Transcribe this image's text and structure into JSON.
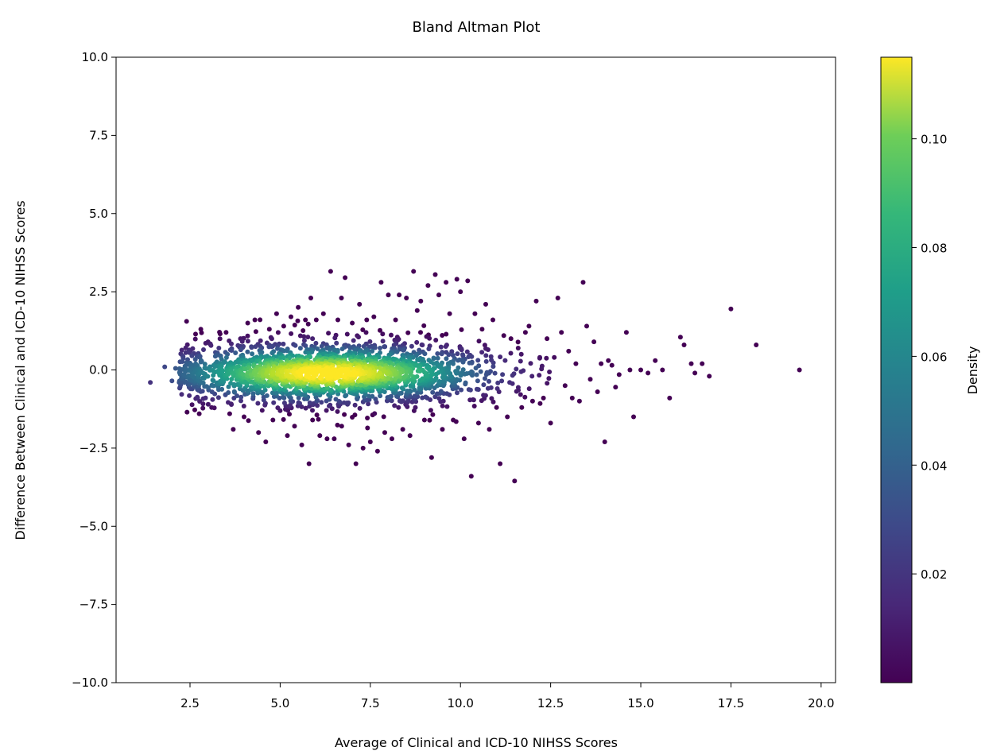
{
  "chart_data": {
    "type": "scatter",
    "title": "Bland Altman Plot",
    "xlabel": "Average of Clinical and ICD-10 NIHSS Scores",
    "ylabel": "Difference Between Clinical and ICD-10 NIHSS Scores",
    "xlim": [
      0.45,
      20.4
    ],
    "ylim": [
      -10.0,
      10.0
    ],
    "x_ticks": [
      "2.5",
      "5.0",
      "7.5",
      "10.0",
      "12.5",
      "15.0",
      "17.5",
      "20.0"
    ],
    "x_tick_values": [
      2.5,
      5.0,
      7.5,
      10.0,
      12.5,
      15.0,
      17.5,
      20.0
    ],
    "y_ticks": [
      "10.0",
      "7.5",
      "5.0",
      "2.5",
      "0.0",
      "−2.5",
      "−5.0",
      "−7.5",
      "−10.0"
    ],
    "y_tick_values": [
      10.0,
      7.5,
      5.0,
      2.5,
      0.0,
      -2.5,
      -5.0,
      -7.5,
      -10.0
    ],
    "grid": false,
    "colormap": "viridis",
    "colors": {
      "low": "#440154",
      "high": "#fde725"
    },
    "colorbar": {
      "label": "Density",
      "range": [
        0.0,
        0.115
      ],
      "ticks": [
        "0.02",
        "0.04",
        "0.06",
        "0.08",
        "0.10"
      ],
      "tick_values": [
        0.02,
        0.04,
        0.06,
        0.08,
        0.1
      ]
    },
    "density_core": {
      "center": [
        6.3,
        -0.1
      ],
      "spread": [
        2.6,
        0.5
      ],
      "count": 2200
    },
    "points": [
      [
        1.4,
        -0.4
      ],
      [
        1.8,
        0.1
      ],
      [
        2.0,
        -0.35
      ],
      [
        2.1,
        0.05
      ],
      [
        2.2,
        -0.4
      ],
      [
        2.5,
        0.6
      ],
      [
        2.7,
        -0.6
      ],
      [
        2.8,
        1.3
      ],
      [
        3.0,
        0.9
      ],
      [
        3.1,
        -1.2
      ],
      [
        3.3,
        0.7
      ],
      [
        3.5,
        1.2
      ],
      [
        3.6,
        -1.4
      ],
      [
        3.7,
        -1.9
      ],
      [
        3.9,
        1.0
      ],
      [
        4.0,
        -1.5
      ],
      [
        4.1,
        1.5
      ],
      [
        4.3,
        1.6
      ],
      [
        4.4,
        -2.0
      ],
      [
        4.6,
        -2.3
      ],
      [
        4.7,
        1.3
      ],
      [
        4.8,
        -1.6
      ],
      [
        4.9,
        1.8
      ],
      [
        5.0,
        -1.3
      ],
      [
        5.1,
        1.4
      ],
      [
        5.2,
        -2.1
      ],
      [
        5.3,
        1.7
      ],
      [
        5.4,
        -1.8
      ],
      [
        5.5,
        2.0
      ],
      [
        5.6,
        -2.4
      ],
      [
        5.7,
        1.6
      ],
      [
        5.8,
        -3.0
      ],
      [
        5.85,
        2.3
      ],
      [
        5.9,
        -1.6
      ],
      [
        6.0,
        1.6
      ],
      [
        6.1,
        -2.1
      ],
      [
        6.2,
        1.8
      ],
      [
        6.3,
        -2.2
      ],
      [
        6.4,
        3.15
      ],
      [
        6.5,
        -2.2
      ],
      [
        6.6,
        1.6
      ],
      [
        6.7,
        2.3
      ],
      [
        6.8,
        2.95
      ],
      [
        6.9,
        -2.4
      ],
      [
        7.0,
        1.5
      ],
      [
        7.1,
        -3.0
      ],
      [
        7.2,
        2.1
      ],
      [
        7.3,
        -2.5
      ],
      [
        7.4,
        1.6
      ],
      [
        7.5,
        -2.3
      ],
      [
        7.6,
        1.7
      ],
      [
        7.7,
        -2.6
      ],
      [
        7.8,
        2.8
      ],
      [
        7.9,
        -2.0
      ],
      [
        8.0,
        2.4
      ],
      [
        8.1,
        -2.2
      ],
      [
        8.2,
        1.6
      ],
      [
        8.3,
        2.4
      ],
      [
        8.4,
        -1.9
      ],
      [
        8.5,
        2.3
      ],
      [
        8.6,
        -2.1
      ],
      [
        8.7,
        3.15
      ],
      [
        8.8,
        1.9
      ],
      [
        8.9,
        2.2
      ],
      [
        9.0,
        -1.6
      ],
      [
        9.1,
        2.7
      ],
      [
        9.2,
        -2.8
      ],
      [
        9.3,
        3.05
      ],
      [
        9.4,
        2.4
      ],
      [
        9.5,
        -1.9
      ],
      [
        9.6,
        2.8
      ],
      [
        9.7,
        1.8
      ],
      [
        9.8,
        -1.6
      ],
      [
        9.9,
        2.9
      ],
      [
        10.0,
        2.5
      ],
      [
        10.1,
        -2.2
      ],
      [
        10.2,
        2.85
      ],
      [
        10.3,
        -3.4
      ],
      [
        10.4,
        1.8
      ],
      [
        10.5,
        -1.7
      ],
      [
        10.6,
        1.3
      ],
      [
        10.7,
        2.1
      ],
      [
        10.8,
        -1.9
      ],
      [
        10.9,
        1.6
      ],
      [
        11.0,
        -1.2
      ],
      [
        11.1,
        -3.0
      ],
      [
        11.2,
        1.1
      ],
      [
        11.3,
        -1.5
      ],
      [
        11.4,
        1.0
      ],
      [
        11.5,
        -3.55
      ],
      [
        11.6,
        0.7
      ],
      [
        11.7,
        -1.2
      ],
      [
        11.8,
        1.2
      ],
      [
        11.9,
        1.4
      ],
      [
        12.0,
        -1.0
      ],
      [
        12.1,
        2.2
      ],
      [
        12.2,
        0.4
      ],
      [
        12.3,
        -0.9
      ],
      [
        12.4,
        1.0
      ],
      [
        12.5,
        -1.7
      ],
      [
        12.6,
        0.4
      ],
      [
        12.7,
        2.3
      ],
      [
        12.8,
        1.2
      ],
      [
        12.9,
        -0.5
      ],
      [
        13.0,
        0.6
      ],
      [
        13.1,
        -0.9
      ],
      [
        13.2,
        0.2
      ],
      [
        13.3,
        -1.0
      ],
      [
        13.4,
        2.8
      ],
      [
        13.5,
        1.4
      ],
      [
        13.6,
        -0.3
      ],
      [
        13.7,
        0.9
      ],
      [
        13.8,
        -0.7
      ],
      [
        13.9,
        0.2
      ],
      [
        14.0,
        -2.3
      ],
      [
        14.1,
        0.3
      ],
      [
        14.2,
        0.15
      ],
      [
        14.3,
        -0.55
      ],
      [
        14.4,
        -0.15
      ],
      [
        14.6,
        1.2
      ],
      [
        14.7,
        0.0
      ],
      [
        14.8,
        -1.5
      ],
      [
        15.0,
        0.0
      ],
      [
        15.2,
        -0.1
      ],
      [
        15.4,
        0.3
      ],
      [
        15.6,
        0.0
      ],
      [
        15.8,
        -0.9
      ],
      [
        16.1,
        1.05
      ],
      [
        16.2,
        0.8
      ],
      [
        16.4,
        0.2
      ],
      [
        16.5,
        -0.1
      ],
      [
        16.7,
        0.2
      ],
      [
        16.9,
        -0.2
      ],
      [
        17.5,
        1.95
      ],
      [
        18.2,
        0.8
      ],
      [
        19.4,
        0.0
      ]
    ]
  }
}
